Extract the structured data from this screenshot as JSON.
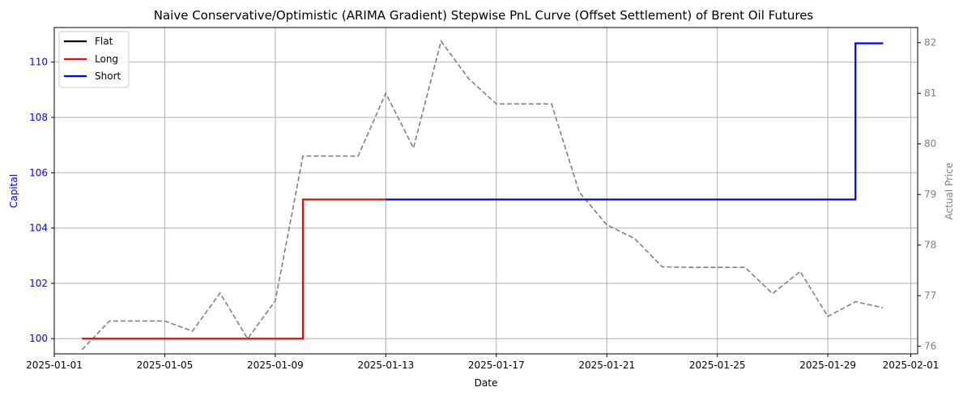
{
  "chart_data": {
    "type": "line",
    "title": "Naive Conservative/Optimistic (ARIMA Gradient) Stepwise PnL Curve (Offset Settlement) of Brent Oil Futures",
    "xlabel": "Date",
    "ylabel_left": "Capital",
    "ylabel_right": "Actual Price",
    "xlim": [
      "2025-01-01",
      "2025-02-01"
    ],
    "ylim_left": [
      99.45,
      111.25
    ],
    "ylim_right": [
      75.85,
      82.3
    ],
    "x_ticks": [
      "2025-01-01",
      "2025-01-05",
      "2025-01-09",
      "2025-01-13",
      "2025-01-17",
      "2025-01-21",
      "2025-01-25",
      "2025-01-29",
      "2025-02-01"
    ],
    "y_ticks_left": [
      "100",
      "102",
      "104",
      "106",
      "108",
      "110"
    ],
    "y_ticks_right": [
      "76",
      "77",
      "78",
      "79",
      "80",
      "81",
      "82"
    ],
    "grid": true,
    "legend_position": "top-left",
    "legend": [
      "Flat",
      "Long",
      "Short"
    ],
    "colors": {
      "flat": "#000000",
      "long": "#ff0000",
      "short": "#0000ff",
      "price": "#808080",
      "left_axis": "#0000ff",
      "right_axis": "#808080",
      "grid": "#b0b0b0"
    },
    "capital_series": [
      {
        "name": "Long",
        "color": "#ff0000",
        "x": [
          "2025-01-02",
          "2025-01-10",
          "2025-01-10",
          "2025-01-13"
        ],
        "y": [
          100.0,
          100.0,
          105.03,
          105.03
        ]
      },
      {
        "name": "Short",
        "color": "#0000ff",
        "x": [
          "2025-01-13",
          "2025-01-30",
          "2025-01-30",
          "2025-01-31"
        ],
        "y": [
          105.03,
          105.03,
          110.68,
          110.68
        ]
      }
    ],
    "price_series": {
      "name": "Actual Price",
      "color": "#808080",
      "style": "dashed",
      "x": [
        "2025-01-02",
        "2025-01-03",
        "2025-01-04",
        "2025-01-05",
        "2025-01-06",
        "2025-01-07",
        "2025-01-08",
        "2025-01-09",
        "2025-01-10",
        "2025-01-11",
        "2025-01-12",
        "2025-01-13",
        "2025-01-14",
        "2025-01-15",
        "2025-01-16",
        "2025-01-17",
        "2025-01-18",
        "2025-01-19",
        "2025-01-20",
        "2025-01-21",
        "2025-01-22",
        "2025-01-23",
        "2025-01-24",
        "2025-01-25",
        "2025-01-26",
        "2025-01-27",
        "2025-01-28",
        "2025-01-29",
        "2025-01-30",
        "2025-01-31"
      ],
      "y": [
        75.93,
        76.5,
        76.5,
        76.5,
        76.3,
        77.05,
        76.15,
        76.9,
        79.76,
        79.76,
        79.76,
        81.0,
        79.92,
        82.03,
        81.29,
        80.79,
        80.79,
        80.79,
        79.05,
        78.4,
        78.13,
        77.57,
        77.56,
        77.56,
        77.56,
        77.04,
        77.48,
        76.59,
        76.88,
        76.76
      ]
    }
  }
}
